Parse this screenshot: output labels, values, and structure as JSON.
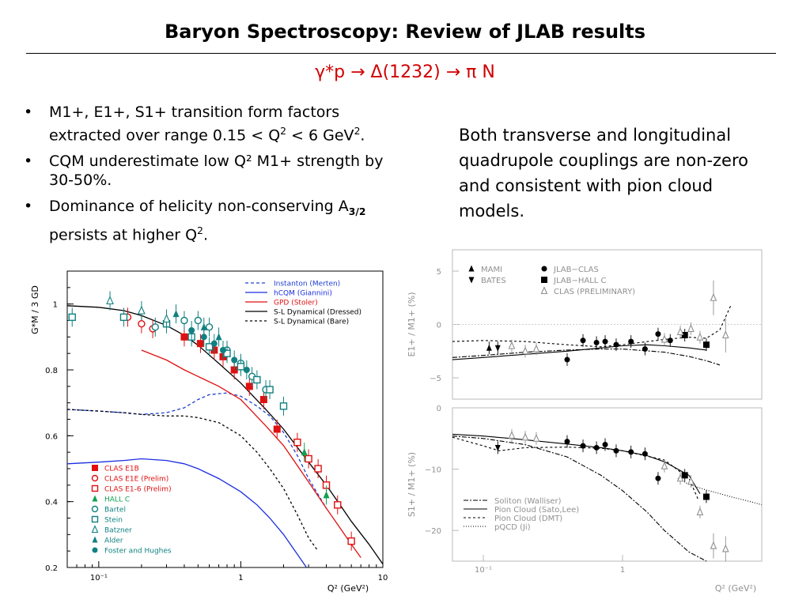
{
  "slide": {
    "title": "Baryon Spectroscopy: Review of JLAB results",
    "subtitle": "γ*p → Δ(1232) → π N",
    "bullets": [
      {
        "pre": "M1+, E1+, S1+ transition form factors extracted over range 0.15 < Q",
        "sup": "2",
        "mid": " < 6 GeV",
        "sup2": "2",
        "post": "."
      },
      {
        "text": "CQM underestimate low Q² M1+ strength by 30-50%."
      },
      {
        "pre": "Dominance of helicity non-conserving A",
        "sub": "3/2",
        "mid": " persists at higher Q",
        "sup": "2",
        "post": "."
      }
    ],
    "note": "Both transverse and longitudinal quadrupole couplings are non-zero and consistent with pion cloud models."
  },
  "chart_data": [
    {
      "type": "scatter",
      "ylabel": "G*M / 3 GD",
      "xlabel": "Q² (GeV²)",
      "xscale": "log",
      "xlim": [
        0.06,
        10
      ],
      "ylim": [
        0.2,
        1.1
      ],
      "xticks": [
        "10⁻¹",
        "1",
        "10"
      ],
      "yticks": [
        "0.2",
        "0.4",
        "0.6",
        "0.8",
        "1"
      ],
      "curves": [
        {
          "name": "Instanton (Merten)",
          "color": "#2040d0",
          "dash": "4,3",
          "x": [
            0.06,
            0.1,
            0.15,
            0.2,
            0.3,
            0.4,
            0.5,
            0.6,
            0.8,
            1.0,
            1.3,
            1.6,
            2.0,
            2.5,
            3.0,
            4.0
          ],
          "y": [
            0.68,
            0.675,
            0.67,
            0.665,
            0.67,
            0.685,
            0.71,
            0.725,
            0.73,
            0.72,
            0.69,
            0.66,
            0.61,
            0.54,
            0.47,
            0.38
          ]
        },
        {
          "name": "hCQM (Giannini)",
          "color": "#1a2ee0",
          "dash": "",
          "x": [
            0.06,
            0.1,
            0.15,
            0.2,
            0.3,
            0.4,
            0.5,
            0.7,
            1.0,
            1.3,
            1.6,
            2.0,
            2.5,
            2.9
          ],
          "y": [
            0.515,
            0.52,
            0.525,
            0.53,
            0.525,
            0.515,
            0.5,
            0.47,
            0.43,
            0.39,
            0.35,
            0.3,
            0.24,
            0.2
          ]
        },
        {
          "name": "GPD (Stoler)",
          "color": "#e01010",
          "dash": "",
          "x": [
            0.2,
            0.3,
            0.4,
            0.5,
            0.7,
            1.0,
            1.5,
            2.0,
            3.0,
            4.0,
            5.0,
            6.0,
            7.0
          ],
          "y": [
            0.86,
            0.83,
            0.8,
            0.78,
            0.75,
            0.71,
            0.63,
            0.57,
            0.46,
            0.38,
            0.32,
            0.27,
            0.23
          ]
        },
        {
          "name": "S-L Dynamical (Dressed)",
          "color": "#000000",
          "dash": "",
          "x": [
            0.06,
            0.1,
            0.15,
            0.2,
            0.3,
            0.4,
            0.5,
            0.7,
            1.0,
            1.5,
            2.0,
            3.0,
            4.0,
            5.0,
            6.0,
            8.0,
            10.0
          ],
          "y": [
            0.995,
            0.99,
            0.98,
            0.965,
            0.935,
            0.905,
            0.875,
            0.82,
            0.76,
            0.68,
            0.62,
            0.52,
            0.45,
            0.39,
            0.34,
            0.27,
            0.21
          ]
        },
        {
          "name": "S-L Dynamical (Bare)",
          "color": "#000000",
          "dash": "3,3",
          "x": [
            0.06,
            0.1,
            0.15,
            0.2,
            0.3,
            0.4,
            0.5,
            0.7,
            1.0,
            1.3,
            1.6,
            2.0,
            2.5,
            3.0,
            3.5
          ],
          "y": [
            0.68,
            0.675,
            0.67,
            0.665,
            0.66,
            0.66,
            0.655,
            0.64,
            0.6,
            0.55,
            0.5,
            0.44,
            0.36,
            0.29,
            0.25
          ]
        }
      ],
      "series": [
        {
          "name": "CLAS E1B",
          "color": "#e01010",
          "marker": "square-filled",
          "x": [
            0.4,
            0.52,
            0.65,
            0.75,
            0.9,
            1.15,
            1.45,
            1.8
          ],
          "y": [
            0.9,
            0.88,
            0.86,
            0.84,
            0.8,
            0.75,
            0.71,
            0.62
          ]
        },
        {
          "name": "CLAS E1E (Prelim)",
          "color": "#e01010",
          "marker": "circle-open",
          "x": [
            0.16,
            0.2,
            0.24
          ],
          "y": [
            0.96,
            0.94,
            0.925
          ]
        },
        {
          "name": "CLAS E1-6 (Prelim)",
          "color": "#e01010",
          "marker": "square-open",
          "x": [
            2.5,
            3.0,
            3.5,
            4.0,
            4.8,
            6.0
          ],
          "y": [
            0.58,
            0.53,
            0.5,
            0.45,
            0.39,
            0.28
          ]
        },
        {
          "name": "HALL C",
          "color": "#10a050",
          "marker": "triangle-filled",
          "x": [
            2.8,
            4.0
          ],
          "y": [
            0.55,
            0.42
          ]
        },
        {
          "name": "Bartel",
          "color": "#108080",
          "marker": "circle-open",
          "x": [
            0.25,
            0.4,
            0.5,
            0.6,
            0.8,
            1.0,
            1.2,
            1.5
          ],
          "y": [
            0.93,
            0.95,
            0.95,
            0.93,
            0.86,
            0.82,
            0.78,
            0.74
          ]
        },
        {
          "name": "Stein",
          "color": "#108080",
          "marker": "square-open",
          "x": [
            0.065,
            0.15,
            0.3,
            0.45,
            0.6,
            0.8,
            1.0,
            1.3,
            1.6,
            2.0
          ],
          "y": [
            0.96,
            0.96,
            0.94,
            0.9,
            0.87,
            0.85,
            0.81,
            0.77,
            0.74,
            0.69
          ]
        },
        {
          "name": "Batzner",
          "color": "#108080",
          "marker": "triangle-open",
          "x": [
            0.12,
            0.2,
            0.3
          ],
          "y": [
            1.01,
            0.98,
            0.955
          ]
        },
        {
          "name": "Alder",
          "color": "#108080",
          "marker": "triangle-filled",
          "x": [
            0.35,
            0.55,
            0.7
          ],
          "y": [
            0.97,
            0.93,
            0.9
          ]
        },
        {
          "name": "Foster and Hughes",
          "color": "#108080",
          "marker": "circle-filled",
          "x": [
            0.45,
            0.55,
            0.65,
            0.75,
            0.9,
            1.1
          ],
          "y": [
            0.92,
            0.9,
            0.88,
            0.86,
            0.83,
            0.8
          ]
        }
      ]
    },
    {
      "type": "scatter",
      "ylabel": "E1+ / M1+ (%)",
      "xscale": "log",
      "xlim": [
        0.06,
        10
      ],
      "ylim": [
        -7,
        7
      ],
      "yticks": [
        "5",
        "0",
        "−5"
      ],
      "legend": [
        "MAMI",
        "BATES",
        "JLAB−CLAS",
        "JLAB−HALL C",
        "CLAS (PRELIMINARY)"
      ],
      "series": [
        {
          "name": "MAMI",
          "marker": "triangle-filled",
          "x": [
            0.11
          ],
          "y": [
            -2.2
          ]
        },
        {
          "name": "BATES",
          "marker": "triangle-down-filled",
          "x": [
            0.127
          ],
          "y": [
            -2.2
          ]
        },
        {
          "name": "JLAB−CLAS",
          "marker": "circle-filled",
          "x": [
            0.4,
            0.52,
            0.65,
            0.75,
            0.9,
            1.15,
            1.45,
            1.8,
            2.2
          ],
          "y": [
            -3.3,
            -1.5,
            -1.7,
            -1.6,
            -1.9,
            -1.6,
            -2.3,
            -0.9,
            -1.5
          ]
        },
        {
          "name": "JLAB−HALL C",
          "marker": "square-filled",
          "x": [
            2.8,
            4.0
          ],
          "y": [
            -1.0,
            -1.9
          ]
        },
        {
          "name": "CLAS (PRELIMINARY)",
          "marker": "triangle-open",
          "x": [
            0.16,
            0.2,
            0.24,
            2.0,
            2.6,
            3.1,
            3.6,
            4.5,
            5.5
          ],
          "y": [
            -2.0,
            -2.5,
            -2.3,
            -1.4,
            -0.7,
            -0.4,
            -1.2,
            2.5,
            -1.0
          ]
        }
      ]
    },
    {
      "type": "scatter",
      "ylabel": "S1+ / M1+ (%)",
      "xlabel": "Q² (GeV²)",
      "xscale": "log",
      "xlim": [
        0.06,
        10
      ],
      "ylim": [
        -25,
        0
      ],
      "xticks": [
        "10⁻¹",
        "1"
      ],
      "yticks": [
        "0",
        "−10",
        "−20"
      ],
      "legend": [
        "Soliton (Walliser)",
        "Pion Cloud (Sato,Lee)",
        "Pion Cloud (DMT)",
        "pQCD (Ji)"
      ],
      "series": [
        {
          "name": "MAMI/BATES",
          "marker": "triangle-down-filled",
          "x": [
            0.127
          ],
          "y": [
            -6.5
          ]
        },
        {
          "name": "JLAB−CLAS",
          "marker": "circle-filled",
          "x": [
            0.4,
            0.52,
            0.65,
            0.75,
            0.9,
            1.15,
            1.45,
            1.8
          ],
          "y": [
            -5.5,
            -6.2,
            -6.5,
            -6.0,
            -7.0,
            -7.2,
            -7.5,
            -11.5
          ]
        },
        {
          "name": "JLAB−HALL C",
          "marker": "square-filled",
          "x": [
            2.8,
            4.0
          ],
          "y": [
            -11.0,
            -14.5
          ]
        },
        {
          "name": "CLAS (PRELIMINARY)",
          "marker": "triangle-open",
          "x": [
            0.16,
            0.2,
            0.24,
            2.0,
            2.6,
            3.1,
            3.6,
            4.5,
            5.5
          ],
          "y": [
            -4.5,
            -4.8,
            -5.0,
            -9.5,
            -11.5,
            -12.0,
            -17.0,
            -22.5,
            -23.0
          ]
        }
      ]
    }
  ]
}
